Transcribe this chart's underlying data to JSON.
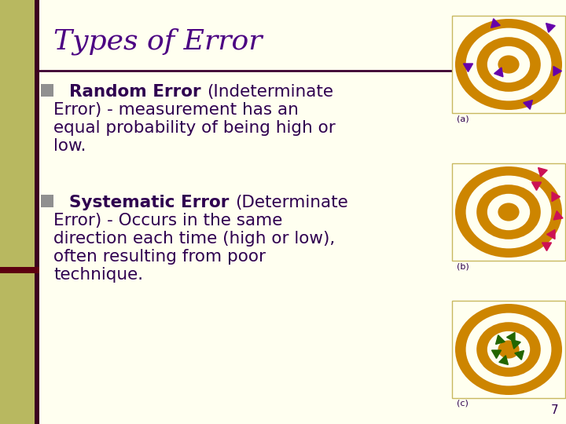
{
  "background_color": "#FFFFF0",
  "left_bar_color": "#B8B860",
  "title": "Types of Error",
  "title_color": "#4B0082",
  "title_fontsize": 26,
  "title_font": "serif",
  "separator_color": "#3B0030",
  "bullet_color": "#909090",
  "text_color": "#2F0050",
  "body_fontsize": 15.5,
  "body_font": "sans-serif",
  "page_number": "7",
  "accent_bar_color": "#606060",
  "dark_bar_color": "#5C0010",
  "target_bg": "#FFFFF0",
  "target_ring_color": "#CD8500",
  "target_inner_color": "#FFFFF0",
  "label_a": "(a)",
  "label_b": "(b)",
  "label_c": "(c)",
  "arrow_color_1": "#6600AA",
  "arrow_color_2": "#CC1155",
  "arrow_color_3": "#226600"
}
